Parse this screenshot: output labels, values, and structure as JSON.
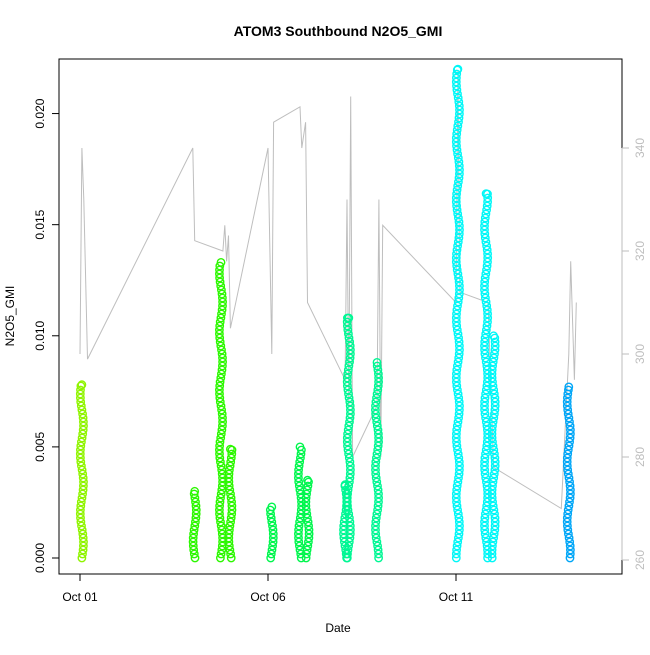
{
  "chart_data": {
    "type": "scatter",
    "title": "ATOM3 Southbound N2O5_GMI",
    "xlabel": "Date",
    "ylabel": "N2O5_GMI",
    "ylim": [
      0,
      0.0225
    ],
    "y2lim": [
      258.5,
      355
    ],
    "x_ticks": [
      {
        "day": 1,
        "label": "Oct 01"
      },
      {
        "day": 6,
        "label": "Oct 06"
      },
      {
        "day": 11,
        "label": "Oct 11"
      }
    ],
    "y_ticks": [
      {
        "value": 0.0,
        "label": "0.000"
      },
      {
        "value": 0.005,
        "label": "0.005"
      },
      {
        "value": 0.01,
        "label": "0.010"
      },
      {
        "value": 0.015,
        "label": "0.015"
      },
      {
        "value": 0.02,
        "label": "0.020"
      }
    ],
    "y2_ticks": [
      {
        "value": 260,
        "label": "260"
      },
      {
        "value": 280,
        "label": "280"
      },
      {
        "value": 300,
        "label": "300"
      },
      {
        "value": 320,
        "label": "320"
      },
      {
        "value": 340,
        "label": "340"
      }
    ],
    "clusters": [
      {
        "day": 1.05,
        "min": 0.0,
        "max": 0.0078,
        "color": "#8ff400"
      },
      {
        "day": 4.05,
        "min": 0.0,
        "max": 0.003,
        "color": "#2cf700"
      },
      {
        "day": 4.75,
        "min": 0.0,
        "max": 0.0133,
        "color": "#2cf700"
      },
      {
        "day": 5.0,
        "min": 0.0,
        "max": 0.0049,
        "color": "#2cf700"
      },
      {
        "day": 6.1,
        "min": 0.0,
        "max": 0.0023,
        "color": "#00f64d"
      },
      {
        "day": 6.85,
        "min": 0.0,
        "max": 0.005,
        "color": "#00f64d"
      },
      {
        "day": 7.05,
        "min": 0.0,
        "max": 0.0035,
        "color": "#00f64d"
      },
      {
        "day": 8.05,
        "min": 0.0,
        "max": 0.0033,
        "color": "#00f794"
      },
      {
        "day": 8.15,
        "min": 0.0,
        "max": 0.0108,
        "color": "#00f794"
      },
      {
        "day": 8.9,
        "min": 0.0,
        "max": 0.0088,
        "color": "#00f794"
      },
      {
        "day": 11.05,
        "min": 0.0,
        "max": 0.022,
        "color": "#00f7f7"
      },
      {
        "day": 11.8,
        "min": 0.0,
        "max": 0.0164,
        "color": "#00f7f7"
      },
      {
        "day": 12.0,
        "min": 0.0,
        "max": 0.01,
        "color": "#00f7f7"
      },
      {
        "day": 14.0,
        "min": 0.0,
        "max": 0.0077,
        "color": "#00a6f7"
      }
    ],
    "altitude_line": [
      [
        1.0,
        300
      ],
      [
        1.05,
        340
      ],
      [
        1.1,
        330
      ],
      [
        1.2,
        299
      ],
      [
        4.0,
        340
      ],
      [
        4.05,
        322
      ],
      [
        4.8,
        320
      ],
      [
        4.85,
        325
      ],
      [
        4.9,
        318
      ],
      [
        4.95,
        323
      ],
      [
        5.0,
        305
      ],
      [
        6.0,
        340
      ],
      [
        6.1,
        300
      ],
      [
        6.15,
        345
      ],
      [
        6.85,
        348
      ],
      [
        6.9,
        340
      ],
      [
        7.0,
        345
      ],
      [
        7.05,
        310
      ],
      [
        8.05,
        295
      ],
      [
        8.1,
        330
      ],
      [
        8.15,
        290
      ],
      [
        8.2,
        350
      ],
      [
        8.25,
        280
      ],
      [
        8.9,
        290
      ],
      [
        8.95,
        330
      ],
      [
        9.0,
        280
      ],
      [
        9.05,
        325
      ],
      [
        11.0,
        310
      ],
      [
        11.05,
        355
      ],
      [
        11.1,
        312
      ],
      [
        11.85,
        310
      ],
      [
        11.9,
        300
      ],
      [
        12.0,
        278
      ],
      [
        13.8,
        270
      ],
      [
        14.0,
        300
      ],
      [
        14.05,
        318
      ],
      [
        14.15,
        295
      ],
      [
        14.2,
        310
      ]
    ]
  }
}
